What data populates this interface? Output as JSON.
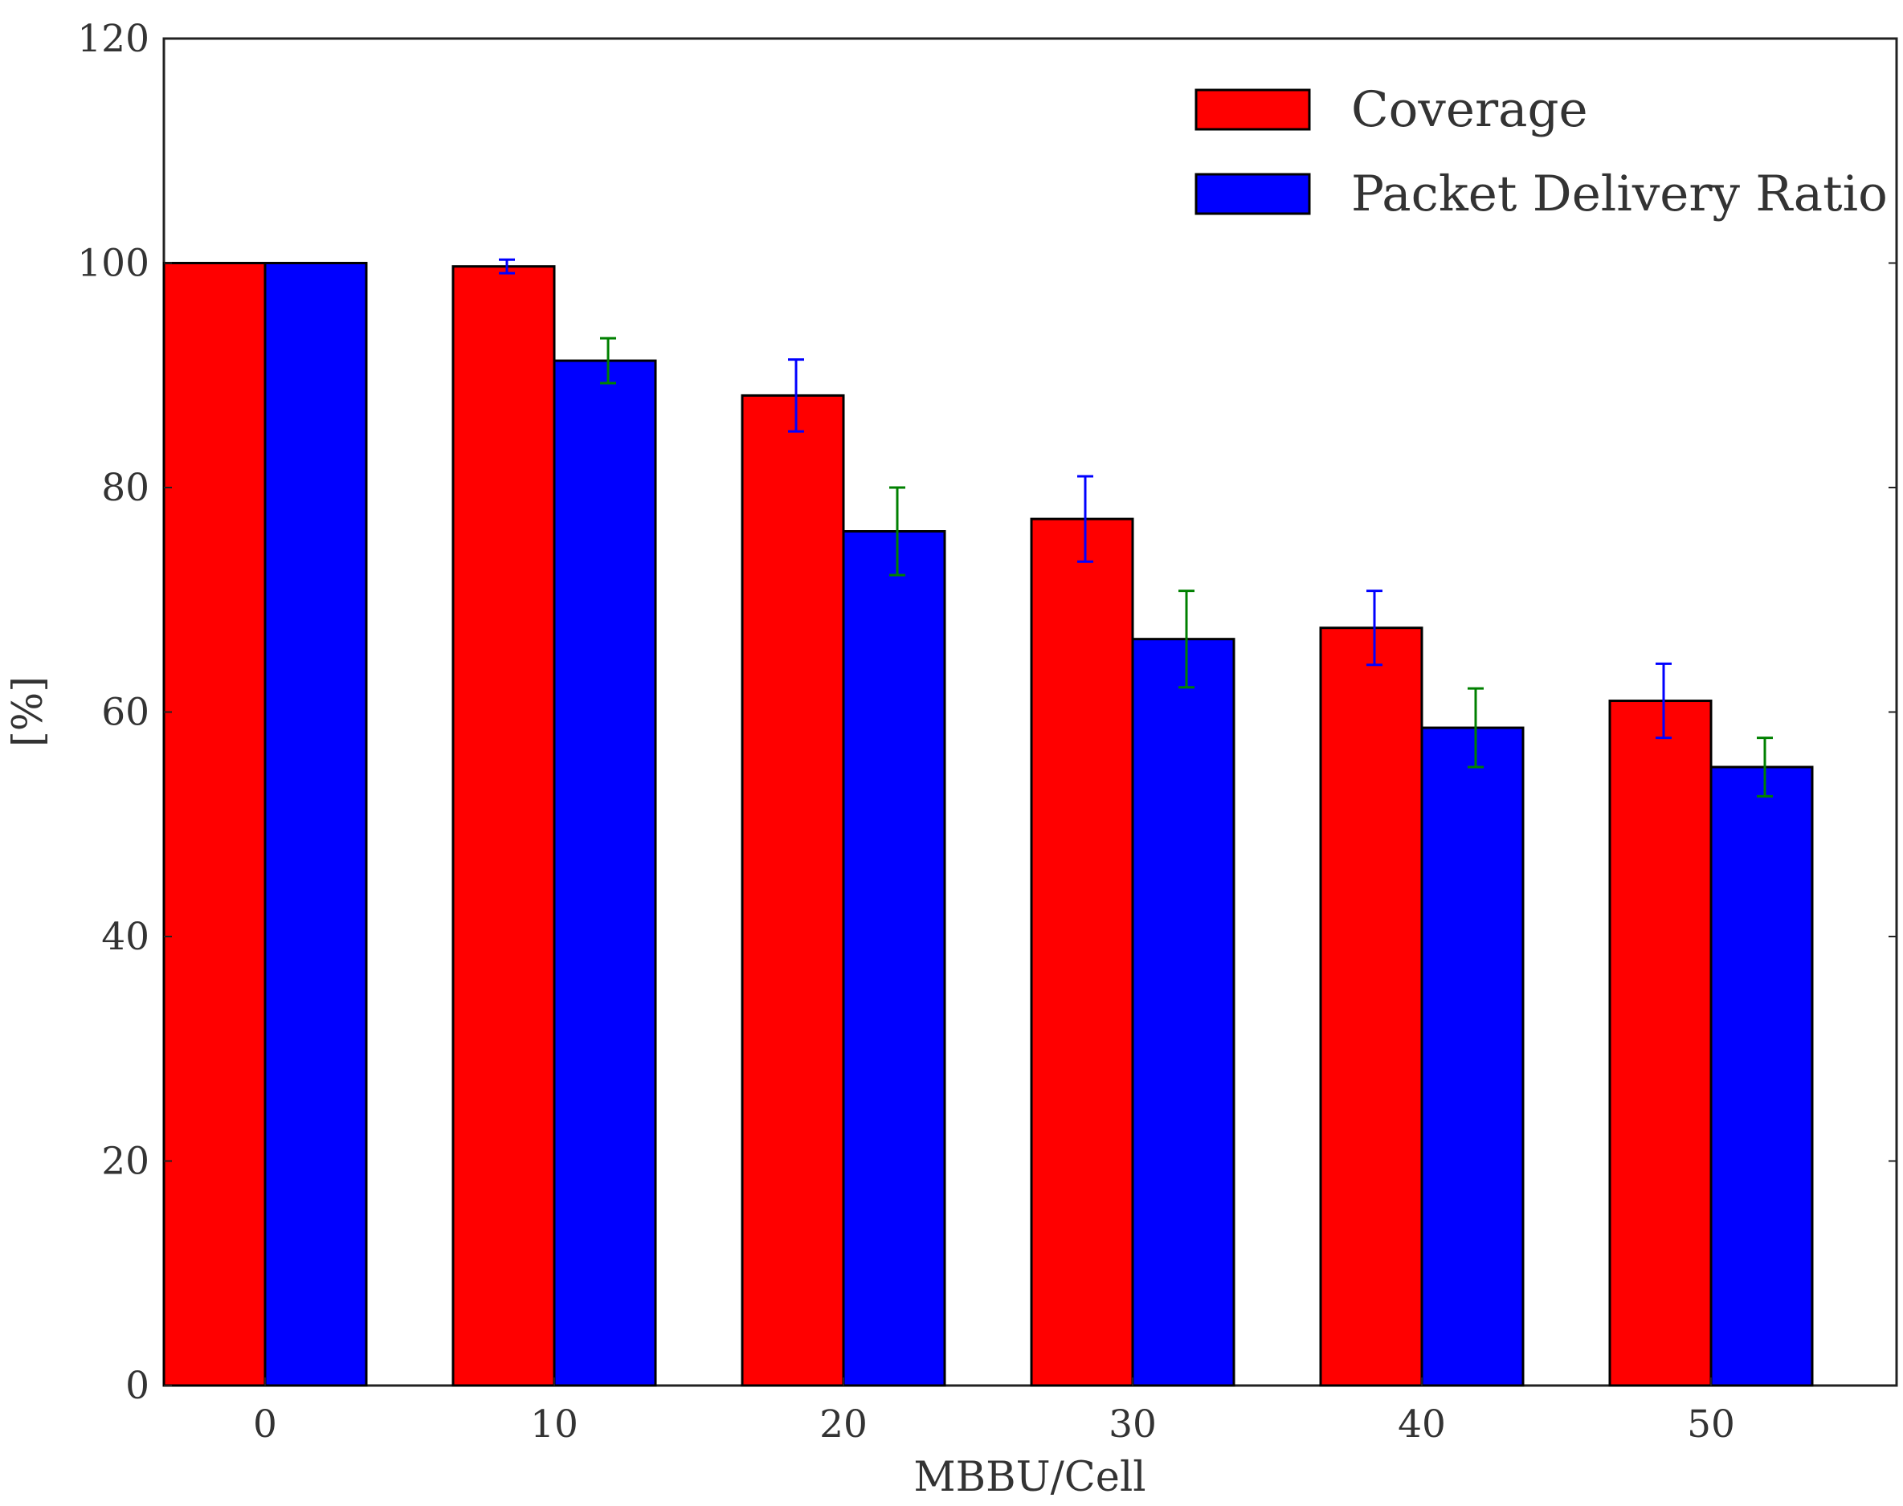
{
  "chart_data": {
    "type": "bar",
    "title": "",
    "xlabel": "MBBU/Cell",
    "ylabel": "[%]",
    "ylim": [
      0,
      120
    ],
    "yticks": [
      0,
      20,
      40,
      60,
      80,
      100,
      120
    ],
    "categories": [
      "0",
      "10",
      "20",
      "30",
      "40",
      "50"
    ],
    "legend_position": "top-right",
    "grid": false,
    "series": [
      {
        "name": "Coverage",
        "color": "#ff0000",
        "error_color": "#0000ff",
        "values": [
          100,
          99.7,
          88.2,
          77.2,
          67.5,
          61
        ],
        "errors": [
          0,
          0.6,
          3.2,
          3.8,
          3.3,
          3.3
        ]
      },
      {
        "name": "Packet Delivery Ratio",
        "color": "#0000ff",
        "error_color": "#008000",
        "values": [
          100,
          91.3,
          76.1,
          66.5,
          58.6,
          55.1
        ],
        "errors": [
          0,
          2,
          3.9,
          4.3,
          3.5,
          2.6
        ]
      }
    ]
  }
}
